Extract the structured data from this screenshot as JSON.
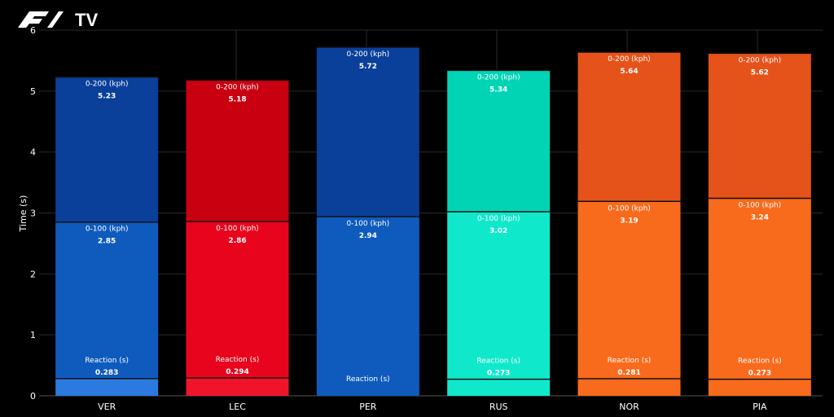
{
  "brand": {
    "logo_text": "F1",
    "tv_text": "TV"
  },
  "chart_data": {
    "type": "bar",
    "title": "",
    "xlabel": "",
    "ylabel": "Time (s)",
    "ylim": [
      0,
      6
    ],
    "yticks": [
      0,
      1,
      2,
      3,
      4,
      5,
      6
    ],
    "grid": true,
    "categories": [
      "VER",
      "LEC",
      "PER",
      "RUS",
      "NOR",
      "PIA"
    ],
    "segment_labels": [
      "Reaction (s)",
      "0-100 (kph)",
      "0-200 (kph)"
    ],
    "bars": [
      {
        "driver": "VER",
        "reaction": 0.283,
        "reaction_label": "0.283",
        "t100": 2.85,
        "t100_label": "2.85",
        "t200": 5.23,
        "t200_label": "5.23",
        "colors": [
          "#2a7ae0",
          "#0f5bbd",
          "#0a3f9a"
        ]
      },
      {
        "driver": "LEC",
        "reaction": 0.294,
        "reaction_label": "0.294",
        "t100": 2.86,
        "t100_label": "2.86",
        "t200": 5.18,
        "t200_label": "5.18",
        "colors": [
          "#f0142a",
          "#e8041c",
          "#c80010"
        ]
      },
      {
        "driver": "PER",
        "reaction": null,
        "reaction_label": "",
        "t100": 2.94,
        "t100_label": "2.94",
        "t200": 5.72,
        "t200_label": "5.72",
        "colors": [
          "#0f5bbd",
          "#0f5bbd",
          "#0a3f9a"
        ]
      },
      {
        "driver": "RUS",
        "reaction": 0.273,
        "reaction_label": "0.273",
        "t100": 3.02,
        "t100_label": "3.02",
        "t200": 5.34,
        "t200_label": "5.34",
        "colors": [
          "#10e8cc",
          "#10e8cc",
          "#00d4b4"
        ]
      },
      {
        "driver": "NOR",
        "reaction": 0.281,
        "reaction_label": "0.281",
        "t100": 3.19,
        "t100_label": "3.19",
        "t200": 5.64,
        "t200_label": "5.64",
        "colors": [
          "#f86a1c",
          "#f86a1c",
          "#e5521a"
        ]
      },
      {
        "driver": "PIA",
        "reaction": 0.273,
        "reaction_label": "0.273",
        "t100": 3.24,
        "t100_label": "3.24",
        "t200": 5.62,
        "t200_label": "5.62",
        "colors": [
          "#f86a1c",
          "#f86a1c",
          "#e5521a"
        ]
      }
    ]
  }
}
